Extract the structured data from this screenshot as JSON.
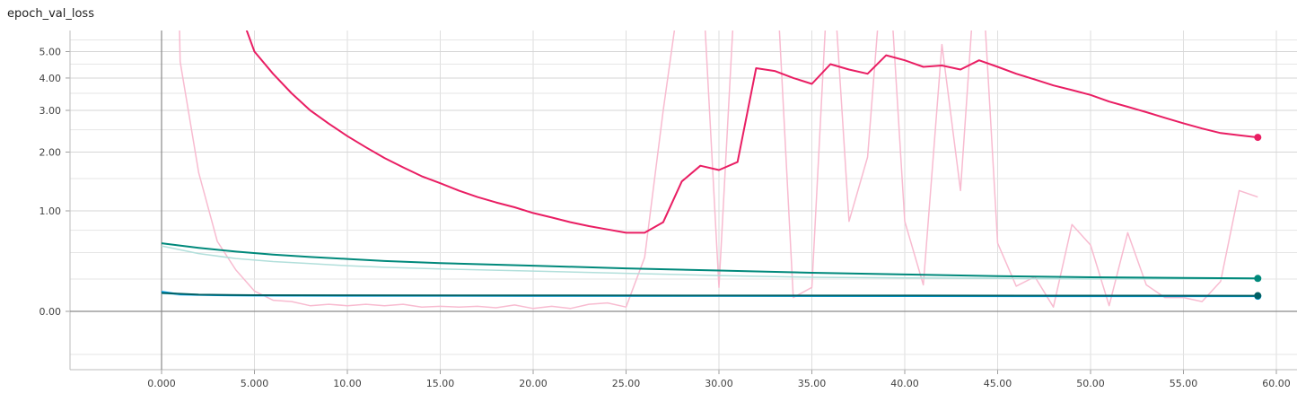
{
  "chart_data": {
    "type": "line",
    "title": "epoch_val_loss",
    "xlabel": "",
    "ylabel": "",
    "xlim": [
      -5,
      60.7
    ],
    "x_ticks": [
      0,
      5,
      10,
      15,
      20,
      25,
      30,
      35,
      40,
      45,
      50,
      55,
      60
    ],
    "x_tick_labels": [
      "0.000",
      "5.000",
      "10.00",
      "15.00",
      "20.00",
      "25.00",
      "30.00",
      "35.00",
      "40.00",
      "45.00",
      "50.00",
      "55.00",
      "60.00"
    ],
    "y_scale": "log1p",
    "y_tick_labels": [
      {
        "value": 0,
        "label": "0.00"
      },
      {
        "value": 1,
        "label": "1.00"
      },
      {
        "value": 2,
        "label": "2.00"
      },
      {
        "value": 3,
        "label": "3.00"
      },
      {
        "value": 4,
        "label": "4.00"
      },
      {
        "value": 5,
        "label": "5.00"
      }
    ],
    "grid": true,
    "series": [
      {
        "color": "#e91e63",
        "raw_color": "#f8bbd0",
        "smoothed": [
          [
            3.5,
            10
          ],
          [
            4,
            7.5
          ],
          [
            5,
            5.0
          ],
          [
            6,
            4.15
          ],
          [
            7,
            3.5
          ],
          [
            8,
            3.0
          ],
          [
            9,
            2.65
          ],
          [
            10,
            2.35
          ],
          [
            11,
            2.1
          ],
          [
            12,
            1.88
          ],
          [
            13,
            1.7
          ],
          [
            14,
            1.54
          ],
          [
            15,
            1.42
          ],
          [
            16,
            1.3
          ],
          [
            17,
            1.2
          ],
          [
            18,
            1.12
          ],
          [
            19,
            1.05
          ],
          [
            20,
            0.97
          ],
          [
            21,
            0.91
          ],
          [
            22,
            0.85
          ],
          [
            23,
            0.8
          ],
          [
            24,
            0.76
          ],
          [
            25,
            0.72
          ],
          [
            26,
            0.72
          ],
          [
            27,
            0.85
          ],
          [
            28,
            1.45
          ],
          [
            29,
            1.73
          ],
          [
            30,
            1.65
          ],
          [
            31,
            1.8
          ],
          [
            32,
            4.35
          ],
          [
            33,
            4.25
          ],
          [
            34,
            4.0
          ],
          [
            35,
            3.8
          ],
          [
            36,
            4.5
          ],
          [
            37,
            4.3
          ],
          [
            38,
            4.15
          ],
          [
            39,
            4.85
          ],
          [
            40,
            4.65
          ],
          [
            41,
            4.4
          ],
          [
            42,
            4.45
          ],
          [
            43,
            4.3
          ],
          [
            44,
            4.65
          ],
          [
            45,
            4.4
          ],
          [
            46,
            4.15
          ],
          [
            47,
            3.95
          ],
          [
            48,
            3.75
          ],
          [
            49,
            3.6
          ],
          [
            50,
            3.45
          ],
          [
            51,
            3.25
          ],
          [
            52,
            3.1
          ],
          [
            53,
            2.95
          ],
          [
            54,
            2.8
          ],
          [
            55,
            2.66
          ],
          [
            56,
            2.53
          ],
          [
            57,
            2.42
          ],
          [
            58,
            2.37
          ],
          [
            59,
            2.32
          ]
        ],
        "raw": [
          [
            0.9,
            10
          ],
          [
            1,
            4.6
          ],
          [
            2,
            1.6
          ],
          [
            3,
            0.62
          ],
          [
            4,
            0.33
          ],
          [
            5,
            0.15
          ],
          [
            6,
            0.08
          ],
          [
            7,
            0.07
          ],
          [
            8,
            0.04
          ],
          [
            9,
            0.05
          ],
          [
            10,
            0.04
          ],
          [
            11,
            0.05
          ],
          [
            12,
            0.04
          ],
          [
            13,
            0.05
          ],
          [
            14,
            0.03
          ],
          [
            15,
            0.035
          ],
          [
            16,
            0.03
          ],
          [
            17,
            0.035
          ],
          [
            18,
            0.025
          ],
          [
            19,
            0.045
          ],
          [
            20,
            0.02
          ],
          [
            21,
            0.035
          ],
          [
            22,
            0.02
          ],
          [
            23,
            0.05
          ],
          [
            24,
            0.06
          ],
          [
            25,
            0.03
          ],
          [
            26,
            0.45
          ],
          [
            27,
            3.0
          ],
          [
            28,
            9.0
          ],
          [
            29,
            12.0
          ],
          [
            30,
            0.18
          ],
          [
            31,
            12.0
          ],
          [
            32,
            14.0
          ],
          [
            33,
            12.0
          ],
          [
            34,
            0.1
          ],
          [
            35,
            0.18
          ],
          [
            36,
            13.0
          ],
          [
            37,
            0.86
          ],
          [
            38,
            1.9
          ],
          [
            39,
            14.0
          ],
          [
            40,
            0.86
          ],
          [
            41,
            0.2
          ],
          [
            42,
            5.3
          ],
          [
            43,
            1.3
          ],
          [
            44,
            14.0
          ],
          [
            45,
            0.6
          ],
          [
            46,
            0.19
          ],
          [
            47,
            0.27
          ],
          [
            48,
            0.03
          ],
          [
            49,
            0.82
          ],
          [
            50,
            0.58
          ],
          [
            51,
            0.04
          ],
          [
            52,
            0.72
          ],
          [
            53,
            0.2
          ],
          [
            54,
            0.1
          ],
          [
            55,
            0.1
          ],
          [
            56,
            0.07
          ],
          [
            57,
            0.23
          ],
          [
            58,
            1.3
          ],
          [
            59,
            1.2
          ]
        ]
      },
      {
        "color": "#00897b",
        "raw_color": "#b2dfdb",
        "smoothed": [
          [
            0,
            0.6
          ],
          [
            2,
            0.55
          ],
          [
            4,
            0.51
          ],
          [
            6,
            0.48
          ],
          [
            8,
            0.455
          ],
          [
            10,
            0.435
          ],
          [
            12,
            0.415
          ],
          [
            15,
            0.395
          ],
          [
            20,
            0.37
          ],
          [
            25,
            0.345
          ],
          [
            30,
            0.325
          ],
          [
            35,
            0.305
          ],
          [
            40,
            0.29
          ],
          [
            45,
            0.275
          ],
          [
            50,
            0.265
          ],
          [
            55,
            0.26
          ],
          [
            59,
            0.255
          ]
        ],
        "raw": [
          [
            0,
            0.57
          ],
          [
            2,
            0.49
          ],
          [
            4,
            0.44
          ],
          [
            6,
            0.41
          ],
          [
            8,
            0.39
          ],
          [
            10,
            0.37
          ],
          [
            12,
            0.355
          ],
          [
            15,
            0.34
          ],
          [
            20,
            0.32
          ],
          [
            25,
            0.3
          ],
          [
            30,
            0.28
          ],
          [
            35,
            0.265
          ],
          [
            40,
            0.26
          ],
          [
            45,
            0.255
          ],
          [
            50,
            0.25
          ],
          [
            55,
            0.25
          ],
          [
            59,
            0.25
          ]
        ]
      },
      {
        "color": "#03a9f4",
        "raw_color": "#b3e5fc",
        "smoothed": [
          [
            0,
            0.145
          ],
          [
            1,
            0.125
          ],
          [
            3,
            0.118
          ],
          [
            5,
            0.115
          ],
          [
            10,
            0.114
          ],
          [
            20,
            0.113
          ],
          [
            30,
            0.112
          ],
          [
            40,
            0.111
          ],
          [
            50,
            0.11
          ],
          [
            59,
            0.11
          ]
        ],
        "raw": [
          [
            0,
            0.135
          ],
          [
            1,
            0.118
          ],
          [
            3,
            0.115
          ],
          [
            5,
            0.113
          ],
          [
            10,
            0.112
          ],
          [
            20,
            0.111
          ],
          [
            30,
            0.11
          ],
          [
            40,
            0.11
          ],
          [
            50,
            0.109
          ],
          [
            59,
            0.109
          ]
        ]
      },
      {
        "color": "#006064",
        "raw_color": "#b2ebf2",
        "smoothed": [
          [
            0,
            0.135
          ],
          [
            2,
            0.122
          ],
          [
            5,
            0.118
          ],
          [
            20,
            0.116
          ],
          [
            40,
            0.115
          ],
          [
            59,
            0.114
          ]
        ],
        "raw": [
          [
            0,
            0.13
          ],
          [
            2,
            0.12
          ],
          [
            5,
            0.117
          ],
          [
            20,
            0.115
          ],
          [
            40,
            0.114
          ],
          [
            59,
            0.113
          ]
        ]
      }
    ]
  }
}
